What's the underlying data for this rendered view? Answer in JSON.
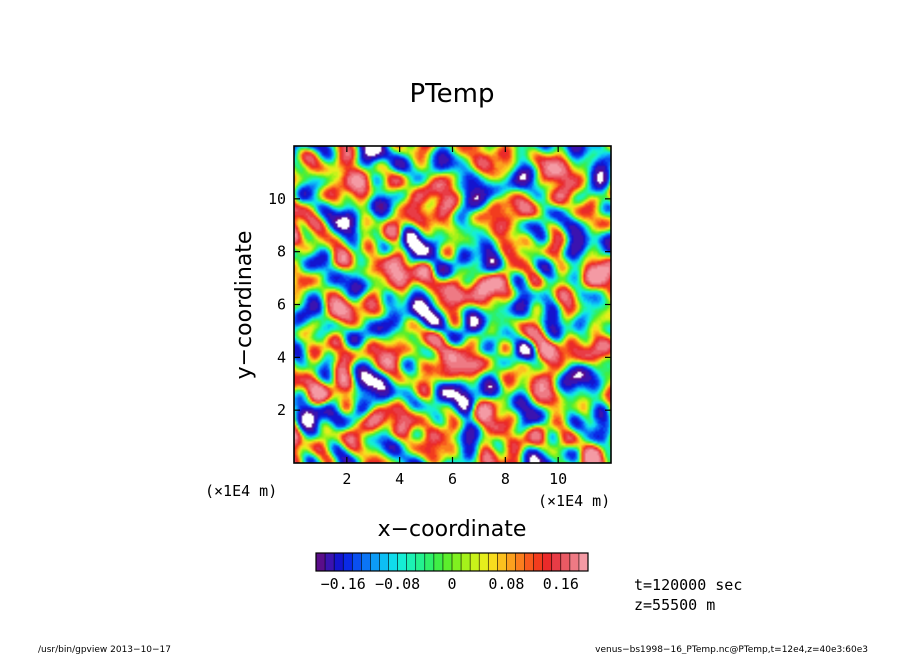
{
  "chart_data": {
    "type": "heatmap",
    "title": "PTemp",
    "xlabel": "x−coordinate",
    "ylabel": "y−coordinate",
    "x_unit": "(×1E4 m)",
    "y_unit": "(×1E4 m)",
    "xlim": [
      0,
      12
    ],
    "ylim": [
      0,
      12
    ],
    "x_ticks": [
      2,
      4,
      6,
      8,
      10
    ],
    "y_ticks": [
      2,
      4,
      6,
      8,
      10
    ],
    "x_tick_labels": [
      "2",
      "4",
      "6",
      "8",
      "10"
    ],
    "y_tick_labels": [
      "2",
      "4",
      "6",
      "8",
      "10"
    ],
    "value_range": [
      -0.2,
      0.2
    ],
    "colorbar": {
      "tick_values": [
        -0.16,
        -0.08,
        0,
        0.08,
        0.16
      ],
      "tick_labels": [
        "−0.16",
        "−0.08",
        "0",
        "0.08",
        "0.16"
      ],
      "colors": [
        "#5a0d8a",
        "#3b13b0",
        "#1414ce",
        "#0a2ae6",
        "#0a50f0",
        "#0b75f5",
        "#0c9bf7",
        "#0dbff5",
        "#10dcec",
        "#15eed5",
        "#1cf2b4",
        "#24f28f",
        "#2ff06a",
        "#40ee46",
        "#5cee2c",
        "#80f020",
        "#a5f21a",
        "#c8f21a",
        "#e6ee1c",
        "#f8dc1e",
        "#fcc01e",
        "#fca01e",
        "#fb7e1e",
        "#f85a1e",
        "#f23c1e",
        "#ea2a2a",
        "#e83c46",
        "#ea5a64",
        "#ee7a84",
        "#f49aa4"
      ]
    },
    "annotations": [
      "t=120000 sec",
      "z=55500 m"
    ]
  },
  "footer": {
    "left": "/usr/bin/gpview   2013−10−17",
    "right": "venus−bs1998−16_PTemp.nc@PTemp,t=12e4,z=40e3:60e3"
  },
  "colors": {
    "missing": "#ffffff",
    "frame": "#000000"
  }
}
